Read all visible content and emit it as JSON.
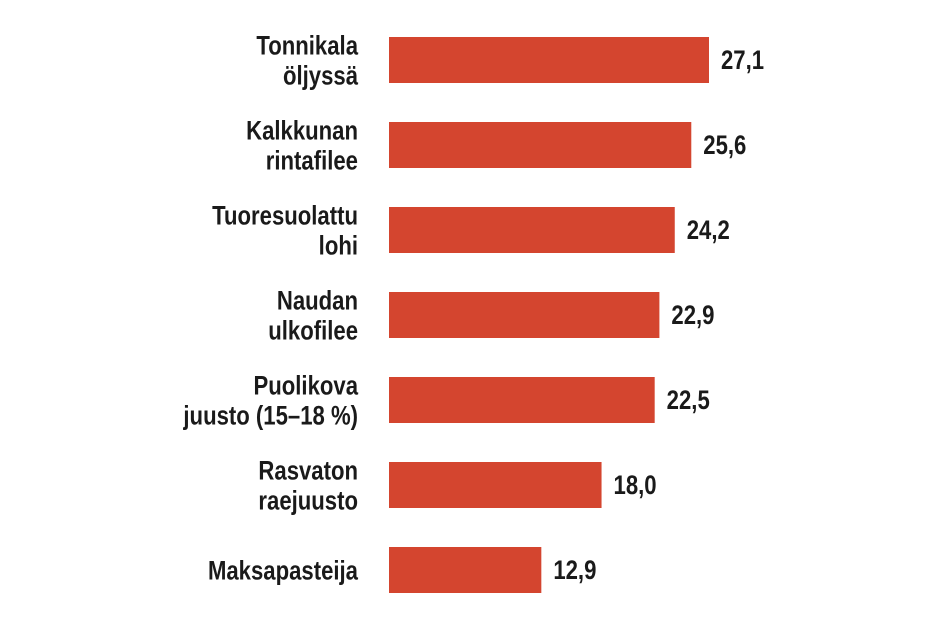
{
  "chart_data": {
    "type": "bar",
    "orientation": "horizontal",
    "categories": [
      "Tonnikala\nöljyssä",
      "Kalkkunan\nrintafilee",
      "Tuoresuolattu\nlohi",
      "Naudan\nulkofilee",
      "Puolikova\njuusto (15–18 %)",
      "Rasvaton\nraejuusto",
      "Maksapasteija"
    ],
    "values": [
      27.1,
      25.6,
      24.2,
      22.9,
      22.5,
      18.0,
      12.9
    ],
    "value_labels": [
      "27,1",
      "25,6",
      "24,2",
      "22,9",
      "22,5",
      "18,0",
      "12,9"
    ],
    "color": "#d4452f"
  }
}
